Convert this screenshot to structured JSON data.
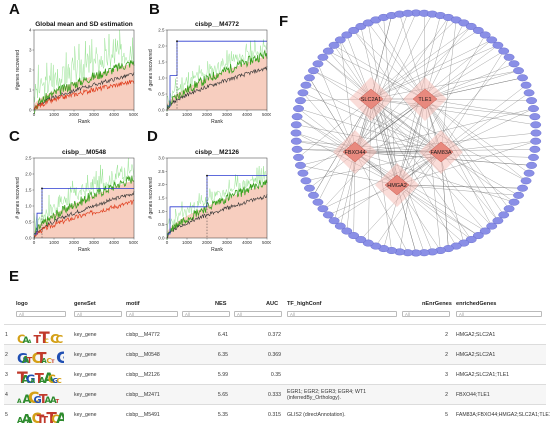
{
  "panels": {
    "A": "A",
    "B": "B",
    "C": "C",
    "D": "D",
    "E": "E",
    "F": "F"
  },
  "plots": [
    {
      "id": "A",
      "title": "Global mean and SD estimation",
      "ylabel": "#genes recovered",
      "xlabel": "Rank",
      "xticks": [
        "0",
        "1000",
        "2000",
        "3000",
        "4000",
        "5000"
      ],
      "yticks": [
        "0",
        "1",
        "2",
        "3",
        "4"
      ]
    },
    {
      "id": "B",
      "title": "cisbp__M4772",
      "ylabel": "# genes recovered",
      "xlabel": "Rank",
      "xticks": [
        "0",
        "1000",
        "2000",
        "3000",
        "4000",
        "5000"
      ],
      "yticks": [
        "0.0",
        "0.5",
        "1.0",
        "1.5",
        "2.0",
        "2.5"
      ]
    },
    {
      "id": "C",
      "title": "cisbp__M0548",
      "ylabel": "# genes recovered",
      "xlabel": "Rank",
      "xticks": [
        "0",
        "1000",
        "2000",
        "3000",
        "4000",
        "5000"
      ],
      "yticks": [
        "0.0",
        "0.5",
        "1.0",
        "1.5",
        "2.0",
        "2.5"
      ]
    },
    {
      "id": "D",
      "title": "cisbp__M2126",
      "ylabel": "# genes recovered",
      "xlabel": "Rank",
      "xticks": [
        "0",
        "1000",
        "2000",
        "3000",
        "4000",
        "5000"
      ],
      "yticks": [
        "0.0",
        "0.5",
        "1.0",
        "1.5",
        "2.0",
        "2.5",
        "3.0"
      ]
    }
  ],
  "network": {
    "hubs": [
      "SLC2A1",
      "TLE1",
      "FBXO44",
      "FAM83A",
      "HMGA2"
    ],
    "colors": {
      "hub": "#e8897e",
      "hub_glow": "#f5b9b2",
      "outer": "#8a8fe6",
      "outer_stroke": "#5e63c8",
      "edge": "#555555"
    }
  },
  "table": {
    "headers": [
      "logo",
      "geneSet",
      "motif",
      "NES",
      "AUC",
      "TF_highConf",
      "nEnrGenes",
      "enrichedGenes"
    ],
    "filter_placeholder": "All",
    "rows": [
      {
        "idx": "1",
        "geneSet": "key_gene",
        "motif": "cisbp__M4772",
        "NES": "6.41",
        "AUC": "0.372",
        "TF_highConf": "",
        "nEnrGenes": "2",
        "enrichedGenes": "HMGA2;SLC2A1"
      },
      {
        "idx": "2",
        "geneSet": "key_gene",
        "motif": "cisbp__M0548",
        "NES": "6.35",
        "AUC": "0.369",
        "TF_highConf": "",
        "nEnrGenes": "2",
        "enrichedGenes": "HMGA2;SLC2A1"
      },
      {
        "idx": "3",
        "geneSet": "key_gene",
        "motif": "cisbp__M2126",
        "NES": "5.99",
        "AUC": "0.35",
        "TF_highConf": "",
        "nEnrGenes": "3",
        "enrichedGenes": "HMGA2;SLC2A1;TLE1"
      },
      {
        "idx": "4",
        "geneSet": "key_gene",
        "motif": "cisbp__M2471",
        "NES": "5.65",
        "AUC": "0.333",
        "TF_highConf": "EGR1; EGR2; EGR3; EGR4; WT1 (inferredBy_Orthology).",
        "nEnrGenes": "2",
        "enrichedGenes": "FBXO44;TLE1"
      },
      {
        "idx": "5",
        "geneSet": "key_gene",
        "motif": "cisbp__M5491",
        "NES": "5.35",
        "AUC": "0.315",
        "TF_highConf": "GLIS2 (directAnnotation).",
        "nEnrGenes": "5",
        "enrichedGenes": "FAM83A;FBXO44;HMGA2;SLC2A1;TLE1"
      }
    ]
  }
}
